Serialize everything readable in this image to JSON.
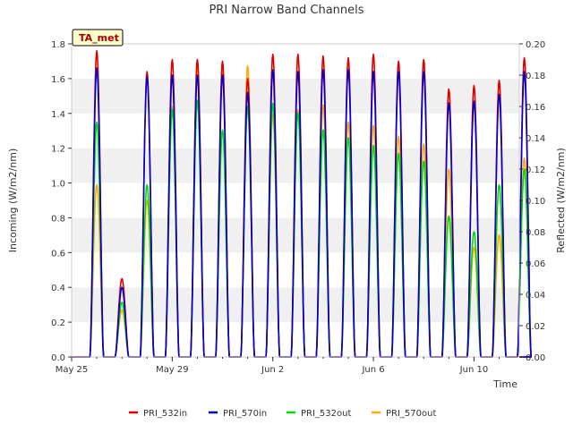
{
  "chart_data": {
    "type": "line",
    "title": "PRI Narrow Band Channels",
    "xlabel": "Time",
    "ylabel_left": "Incoming (W/m2/nm)",
    "ylabel_right": "Reflected (W/m2/nm)",
    "station_badge": "TA_met",
    "x_ticks": [
      "May 25",
      "May 29",
      "Jun 2",
      "Jun 6",
      "Jun 10"
    ],
    "x_tick_days": [
      0,
      4,
      8,
      12,
      16
    ],
    "xlim_days": [
      0,
      17.8
    ],
    "ylim_left": [
      0,
      1.8
    ],
    "ylim_right": [
      0,
      0.2
    ],
    "y_ticks_left": [
      "0.0",
      "0.2",
      "0.4",
      "0.6",
      "0.8",
      "1.0",
      "1.2",
      "1.4",
      "1.6",
      "1.8"
    ],
    "y_ticks_right": [
      "0.00",
      "0.02",
      "0.04",
      "0.06",
      "0.08",
      "0.10",
      "0.12",
      "0.14",
      "0.16",
      "0.18",
      "0.20"
    ],
    "legend_position": "bottom-center",
    "background_bands": true,
    "day_start": 0.5,
    "series": [
      {
        "name": "PRI_532in",
        "color": "#dd0000",
        "axis": "left",
        "daily_peaks": [
          1.76,
          0.45,
          1.64,
          1.71,
          1.71,
          1.7,
          1.6,
          1.74,
          1.74,
          1.73,
          1.72,
          1.74,
          1.7,
          1.71,
          1.54,
          1.56,
          1.59,
          1.72
        ]
      },
      {
        "name": "PRI_570in",
        "color": "#0000cc",
        "axis": "left",
        "daily_peaks": [
          1.66,
          0.4,
          1.61,
          1.62,
          1.62,
          1.62,
          1.52,
          1.65,
          1.64,
          1.65,
          1.65,
          1.64,
          1.64,
          1.64,
          1.46,
          1.47,
          1.51,
          1.64
        ]
      },
      {
        "name": "PRI_532out",
        "color": "#00dd00",
        "axis": "right",
        "daily_peaks": [
          0.15,
          0.035,
          0.11,
          0.158,
          0.164,
          0.145,
          0.16,
          0.162,
          0.156,
          0.145,
          0.14,
          0.135,
          0.13,
          0.125,
          0.09,
          0.08,
          0.11,
          0.12
        ]
      },
      {
        "name": "PRI_570out",
        "color": "#ffaa00",
        "axis": "right",
        "daily_peaks": [
          0.11,
          0.03,
          0.1,
          0.16,
          0.188,
          0.185,
          0.186,
          0.155,
          0.158,
          0.161,
          0.15,
          0.148,
          0.141,
          0.136,
          0.12,
          0.07,
          0.078,
          0.127
        ]
      }
    ]
  }
}
